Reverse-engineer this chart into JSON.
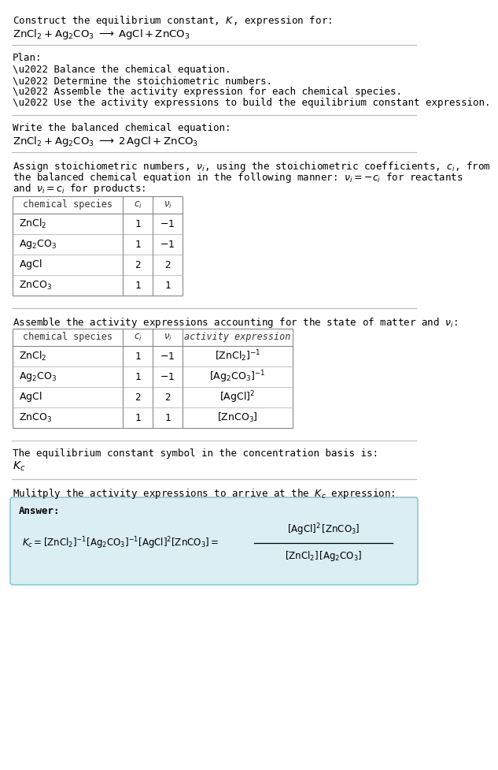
{
  "bg_color": "#ffffff",
  "text_color": "#000000",
  "separator_color": "#bbbbbb",
  "answer_box_bg": "#daeef3",
  "answer_box_border": "#7abfcc",
  "font_size": 9.0,
  "mono_font": "DejaVu Sans Mono",
  "sections": {
    "title_text": "Construct the equilibrium constant, $K$, expression for:",
    "title_eq": "$\\mathrm{ZnCl_2 + Ag_2CO_3 \\;\\longrightarrow\\; AgCl + ZnCO_3}$",
    "plan_header": "Plan:",
    "plan_items": [
      "\\u2022 Balance the chemical equation.",
      "\\u2022 Determine the stoichiometric numbers.",
      "\\u2022 Assemble the activity expression for each chemical species.",
      "\\u2022 Use the activity expressions to build the equilibrium constant expression."
    ],
    "balanced_header": "Write the balanced chemical equation:",
    "balanced_eq": "$\\mathrm{ZnCl_2 + Ag_2CO_3 \\;\\longrightarrow\\; 2\\,AgCl + ZnCO_3}$",
    "stoich_intro_lines": [
      "Assign stoichiometric numbers, $\\nu_i$, using the stoichiometric coefficients, $c_i$, from",
      "the balanced chemical equation in the following manner: $\\nu_i = -c_i$ for reactants",
      "and $\\nu_i = c_i$ for products:"
    ],
    "table1_headers": [
      "chemical species",
      "$c_i$",
      "$\\nu_i$"
    ],
    "table1_rows": [
      [
        "$\\mathrm{ZnCl_2}$",
        "1",
        "$-1$"
      ],
      [
        "$\\mathrm{Ag_2CO_3}$",
        "1",
        "$-1$"
      ],
      [
        "$\\mathrm{AgCl}$",
        "2",
        "2"
      ],
      [
        "$\\mathrm{ZnCO_3}$",
        "1",
        "1"
      ]
    ],
    "activity_intro": "Assemble the activity expressions accounting for the state of matter and $\\nu_i$:",
    "table2_headers": [
      "chemical species",
      "$c_i$",
      "$\\nu_i$",
      "activity expression"
    ],
    "table2_rows": [
      [
        "$\\mathrm{ZnCl_2}$",
        "1",
        "$-1$",
        "$[\\mathrm{ZnCl_2}]^{-1}$"
      ],
      [
        "$\\mathrm{Ag_2CO_3}$",
        "1",
        "$-1$",
        "$[\\mathrm{Ag_2CO_3}]^{-1}$"
      ],
      [
        "$\\mathrm{AgCl}$",
        "2",
        "2",
        "$[\\mathrm{AgCl}]^{2}$"
      ],
      [
        "$\\mathrm{ZnCO_3}$",
        "1",
        "1",
        "$[\\mathrm{ZnCO_3}]$"
      ]
    ],
    "kc_text": "The equilibrium constant symbol in the concentration basis is:",
    "kc_symbol": "$K_c$",
    "multiply_text": "Mulitply the activity expressions to arrive at the $K_c$ expression:",
    "answer_label": "Answer:",
    "kc_eq": "$K_c = [\\mathrm{ZnCl_2}]^{-1} [\\mathrm{Ag_2CO_3}]^{-1} [\\mathrm{AgCl}]^{2} [\\mathrm{ZnCO_3}] = $",
    "frac_num": "$[\\mathrm{AgCl}]^{2}\\,[\\mathrm{ZnCO_3}]$",
    "frac_den": "$[\\mathrm{ZnCl_2}]\\,[\\mathrm{Ag_2CO_3}]$"
  }
}
